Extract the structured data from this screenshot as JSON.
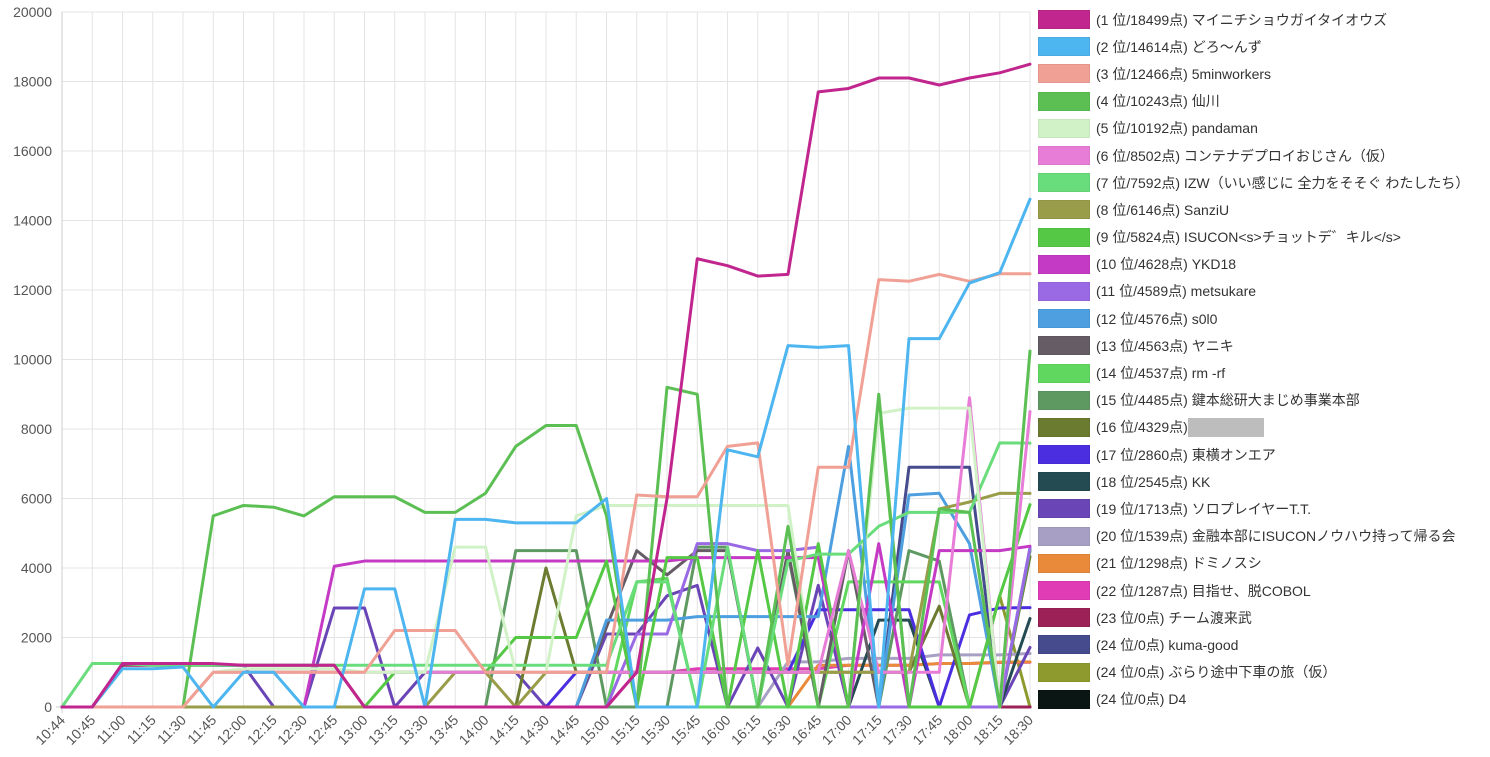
{
  "chart_data": {
    "type": "line",
    "x": [
      "10:44",
      "10:45",
      "11:00",
      "11:15",
      "11:30",
      "11:45",
      "12:00",
      "12:15",
      "12:30",
      "12:45",
      "13:00",
      "13:15",
      "13:30",
      "13:45",
      "14:00",
      "14:15",
      "14:30",
      "14:45",
      "15:00",
      "15:15",
      "15:30",
      "15:45",
      "16:00",
      "16:15",
      "16:30",
      "16:45",
      "17:00",
      "17:15",
      "17:30",
      "17:45",
      "18:00",
      "18:15",
      "18:30"
    ],
    "ylim": [
      0,
      20000
    ],
    "yticks": [
      0,
      2000,
      4000,
      6000,
      8000,
      10000,
      12000,
      14000,
      16000,
      18000,
      20000
    ],
    "grid": true,
    "legend_position": "right",
    "series": [
      {
        "name": "(1 位/18499点) マイニチショウガイタイオウズ",
        "color": "#c0268e",
        "values": [
          0,
          0,
          1250,
          1250,
          1250,
          1250,
          1200,
          1200,
          1200,
          1200,
          0,
          0,
          0,
          0,
          0,
          0,
          0,
          0,
          0,
          1000,
          6000,
          12900,
          12700,
          12400,
          12450,
          17700,
          17800,
          18100,
          18100,
          17900,
          18100,
          18250,
          18499
        ]
      },
      {
        "name": "(2 位/14614点) どろ〜んず",
        "color": "#4db5ef",
        "values": [
          0,
          0,
          1100,
          1100,
          1150,
          0,
          1000,
          1000,
          0,
          0,
          3400,
          3400,
          0,
          5400,
          5400,
          5300,
          5300,
          5300,
          6000,
          0,
          0,
          0,
          7400,
          7200,
          10400,
          10350,
          10400,
          0,
          10600,
          10600,
          12200,
          12500,
          14614
        ]
      },
      {
        "name": "(3 位/12466点) 5minworkers",
        "color": "#f0a094",
        "values": [
          0,
          0,
          0,
          0,
          0,
          1000,
          1000,
          1000,
          1000,
          1000,
          1000,
          2200,
          2200,
          2200,
          1000,
          1000,
          1000,
          1000,
          1000,
          6100,
          6050,
          6050,
          7500,
          7600,
          1200,
          6900,
          6900,
          12300,
          12250,
          12450,
          12250,
          12466,
          12466
        ]
      },
      {
        "name": "(4 位/10243点) 仙川",
        "color": "#5cbf53",
        "values": [
          0,
          0,
          0,
          0,
          0,
          5500,
          5800,
          5750,
          5500,
          6050,
          6050,
          6050,
          5600,
          5600,
          6150,
          7500,
          8100,
          8100,
          5500,
          0,
          9200,
          9000,
          0,
          0,
          5200,
          0,
          0,
          9000,
          0,
          5700,
          5600,
          0,
          10243
        ]
      },
      {
        "name": "(5 位/10192点) pandaman",
        "color": "#d1f2c7",
        "values": [
          0,
          0,
          0,
          0,
          0,
          1000,
          1100,
          1100,
          1100,
          1100,
          1000,
          1000,
          1000,
          4600,
          4600,
          1000,
          1000,
          5500,
          5800,
          5800,
          5800,
          5800,
          5800,
          5800,
          5800,
          0,
          0,
          8450,
          8600,
          8600,
          8600,
          0,
          10192
        ]
      },
      {
        "name": "(6 位/8502点) コンテナデプロイおじさん（仮）",
        "color": "#e87dd7",
        "values": [
          0,
          0,
          0,
          0,
          0,
          1000,
          1000,
          1000,
          1000,
          1000,
          1000,
          1000,
          1000,
          1000,
          1000,
          1000,
          1000,
          1000,
          1000,
          1000,
          1000,
          1000,
          1000,
          1000,
          1000,
          1000,
          4500,
          1000,
          1000,
          1000,
          8900,
          0,
          8502
        ]
      },
      {
        "name": "(7 位/7592点) IZW（いい感じに 全力をそそぐ わたしたち）",
        "color": "#69dd7b",
        "values": [
          0,
          1250,
          1250,
          1200,
          1200,
          1200,
          1200,
          1200,
          1200,
          1200,
          1200,
          1200,
          1200,
          1200,
          1200,
          1200,
          1200,
          1200,
          1200,
          3600,
          3600,
          0,
          4600,
          0,
          4200,
          4400,
          4400,
          5200,
          5600,
          5600,
          5600,
          7600,
          7592
        ]
      },
      {
        "name": "(8 位/6146点) SanziU",
        "color": "#999c48",
        "values": [
          0,
          0,
          0,
          0,
          0,
          0,
          0,
          0,
          0,
          0,
          0,
          0,
          0,
          1000,
          1000,
          0,
          1000,
          1000,
          1000,
          1000,
          1000,
          1000,
          1000,
          1000,
          1000,
          1000,
          1000,
          1000,
          1000,
          5700,
          5900,
          6150,
          6146
        ]
      },
      {
        "name": "(9 位/5824点) ISUCON<s>チョットデ゛キル</s>",
        "color": "#55c845",
        "values": [
          0,
          0,
          0,
          0,
          0,
          0,
          0,
          0,
          0,
          0,
          0,
          1000,
          1000,
          1000,
          1000,
          2000,
          2000,
          2000,
          4200,
          0,
          4300,
          4300,
          0,
          4500,
          0,
          4700,
          0,
          8800,
          0,
          0,
          0,
          3200,
          5824
        ]
      },
      {
        "name": "(10 位/4628点) YKD18",
        "color": "#c43ac4",
        "values": [
          0,
          0,
          0,
          0,
          0,
          0,
          0,
          0,
          0,
          4050,
          4200,
          4200,
          4200,
          4200,
          4200,
          4200,
          4200,
          4200,
          4200,
          4200,
          4200,
          4300,
          4300,
          4300,
          4300,
          4300,
          0,
          4700,
          0,
          4500,
          4500,
          4500,
          4628
        ]
      },
      {
        "name": "(11 位/4589点) metsukare",
        "color": "#9a6ae4",
        "values": [
          0,
          0,
          0,
          0,
          0,
          0,
          0,
          0,
          0,
          0,
          0,
          0,
          0,
          0,
          0,
          0,
          0,
          0,
          0,
          2100,
          2100,
          4700,
          4700,
          4500,
          4500,
          4600,
          0,
          0,
          0,
          0,
          0,
          0,
          4589
        ]
      },
      {
        "name": "(12 位/4576点) s0l0",
        "color": "#4d9fe0",
        "values": [
          0,
          0,
          0,
          0,
          0,
          0,
          0,
          0,
          0,
          0,
          0,
          0,
          0,
          0,
          0,
          0,
          0,
          0,
          2500,
          2500,
          2500,
          2600,
          2600,
          2600,
          2600,
          2600,
          7500,
          0,
          6100,
          6150,
          4700,
          0,
          4576
        ]
      },
      {
        "name": "(13 位/4563点) ヤニキ",
        "color": "#655c66",
        "values": [
          0,
          0,
          0,
          0,
          0,
          0,
          0,
          0,
          0,
          0,
          0,
          0,
          0,
          0,
          0,
          0,
          0,
          0,
          2300,
          4500,
          3800,
          4500,
          4500,
          0,
          4500,
          0,
          4500,
          0,
          0,
          0,
          0,
          0,
          4563
        ]
      },
      {
        "name": "(14 位/4537点) rm -rf",
        "color": "#60d860",
        "values": [
          0,
          0,
          0,
          0,
          0,
          0,
          0,
          0,
          0,
          0,
          0,
          0,
          0,
          0,
          0,
          0,
          0,
          0,
          0,
          3600,
          3700,
          0,
          0,
          0,
          0,
          0,
          3600,
          3600,
          3600,
          3600,
          0,
          0,
          4537
        ]
      },
      {
        "name": "(15 位/4485点) 鍵本総研大まじめ事業本部",
        "color": "#5f9962",
        "values": [
          0,
          0,
          0,
          0,
          0,
          0,
          0,
          0,
          0,
          0,
          0,
          0,
          0,
          0,
          0,
          4500,
          4500,
          4500,
          0,
          0,
          0,
          4600,
          4600,
          0,
          4400,
          0,
          0,
          0,
          4500,
          4200,
          0,
          0,
          4485
        ]
      },
      {
        "name": "(16 位/4329点) ",
        "color": "#6b7b2f",
        "values": [
          0,
          0,
          0,
          0,
          0,
          0,
          0,
          0,
          0,
          0,
          0,
          0,
          0,
          0,
          0,
          0,
          4000,
          1000,
          1000,
          1000,
          1000,
          1000,
          1000,
          1000,
          1000,
          1000,
          1000,
          1000,
          1000,
          2900,
          0,
          0,
          4329
        ]
      },
      {
        "name": "(17 位/2860点) 東横オンエア",
        "color": "#4a2ee0",
        "values": [
          0,
          0,
          0,
          0,
          0,
          0,
          0,
          0,
          0,
          0,
          0,
          0,
          0,
          0,
          0,
          0,
          0,
          1000,
          1000,
          1000,
          1000,
          1000,
          1000,
          1000,
          1000,
          2800,
          2800,
          2800,
          2800,
          0,
          2650,
          2850,
          2860
        ]
      },
      {
        "name": "(18 位/2545点) KK",
        "color": "#244a52",
        "values": [
          0,
          0,
          0,
          0,
          0,
          0,
          0,
          0,
          0,
          0,
          0,
          0,
          0,
          0,
          0,
          0,
          0,
          0,
          0,
          0,
          0,
          0,
          0,
          0,
          0,
          0,
          0,
          2500,
          2500,
          0,
          0,
          0,
          2545
        ]
      },
      {
        "name": "(19 位/1713点) ソロプレイヤーT.T.",
        "color": "#6a45b6",
        "values": [
          0,
          0,
          1250,
          1250,
          1250,
          1200,
          1200,
          0,
          0,
          2850,
          2850,
          0,
          1000,
          1000,
          1000,
          1000,
          0,
          0,
          2100,
          2100,
          3200,
          3500,
          0,
          1700,
          0,
          3500,
          0,
          0,
          0,
          0,
          0,
          0,
          1713
        ]
      },
      {
        "name": "(20 位/1539点) 金融本部にISUCONノウハウ持って帰る会",
        "color": "#a8a0c4",
        "values": [
          0,
          0,
          0,
          0,
          0,
          0,
          0,
          0,
          0,
          0,
          0,
          0,
          0,
          0,
          0,
          0,
          0,
          0,
          0,
          0,
          0,
          0,
          0,
          0,
          1300,
          1300,
          1400,
          1400,
          1400,
          1500,
          1500,
          1500,
          1539
        ]
      },
      {
        "name": "(21 位/1298点) ドミノスシ",
        "color": "#e88a3a",
        "values": [
          0,
          0,
          0,
          0,
          0,
          0,
          0,
          0,
          0,
          0,
          0,
          0,
          0,
          0,
          0,
          0,
          0,
          0,
          0,
          0,
          0,
          0,
          0,
          0,
          0,
          1200,
          1200,
          1200,
          1200,
          1250,
          1250,
          1290,
          1298
        ]
      },
      {
        "name": "(22 位/1287点) 目指せ、脱COBOL",
        "color": "#e03cb6",
        "values": [
          0,
          0,
          0,
          0,
          0,
          0,
          0,
          0,
          0,
          0,
          0,
          0,
          0,
          0,
          0,
          0,
          0,
          0,
          0,
          1000,
          1000,
          1100,
          1100,
          1100,
          1100,
          1100,
          1200,
          1200,
          1200,
          1250,
          1250,
          1280,
          1287
        ]
      },
      {
        "name": "(23 位/0点) チーム渡来武",
        "color": "#9b2156",
        "values": [
          0,
          0,
          1200,
          1200,
          1200,
          1200,
          1200,
          1200,
          1200,
          1200,
          0,
          0,
          0,
          0,
          0,
          0,
          0,
          0,
          0,
          0,
          0,
          0,
          0,
          0,
          0,
          0,
          0,
          0,
          0,
          0,
          0,
          0,
          0
        ]
      },
      {
        "name": "(24 位/0点) kuma-good",
        "color": "#454b8c",
        "values": [
          0,
          0,
          0,
          0,
          0,
          0,
          0,
          0,
          0,
          0,
          0,
          0,
          0,
          0,
          0,
          0,
          0,
          0,
          0,
          0,
          0,
          0,
          0,
          0,
          0,
          0,
          0,
          0,
          6900,
          6900,
          6900,
          0,
          0
        ]
      },
      {
        "name": "(24 位/0点) ぶらり途中下車の旅（仮）",
        "color": "#8e9a2e",
        "values": [
          0,
          0,
          0,
          0,
          0,
          0,
          0,
          0,
          0,
          0,
          0,
          0,
          0,
          0,
          0,
          0,
          0,
          0,
          0,
          0,
          0,
          0,
          0,
          0,
          0,
          0,
          0,
          0,
          0,
          0,
          0,
          3200,
          0
        ]
      },
      {
        "name": "(24 位/0点) D4",
        "color": "#0a1614",
        "values": [
          0,
          0,
          0,
          0,
          0,
          0,
          0,
          0,
          0,
          0,
          0,
          0,
          0,
          0,
          0,
          0,
          0,
          0,
          0,
          0,
          0,
          0,
          0,
          0,
          0,
          0,
          0,
          0,
          0,
          0,
          0,
          0,
          0
        ]
      }
    ]
  }
}
